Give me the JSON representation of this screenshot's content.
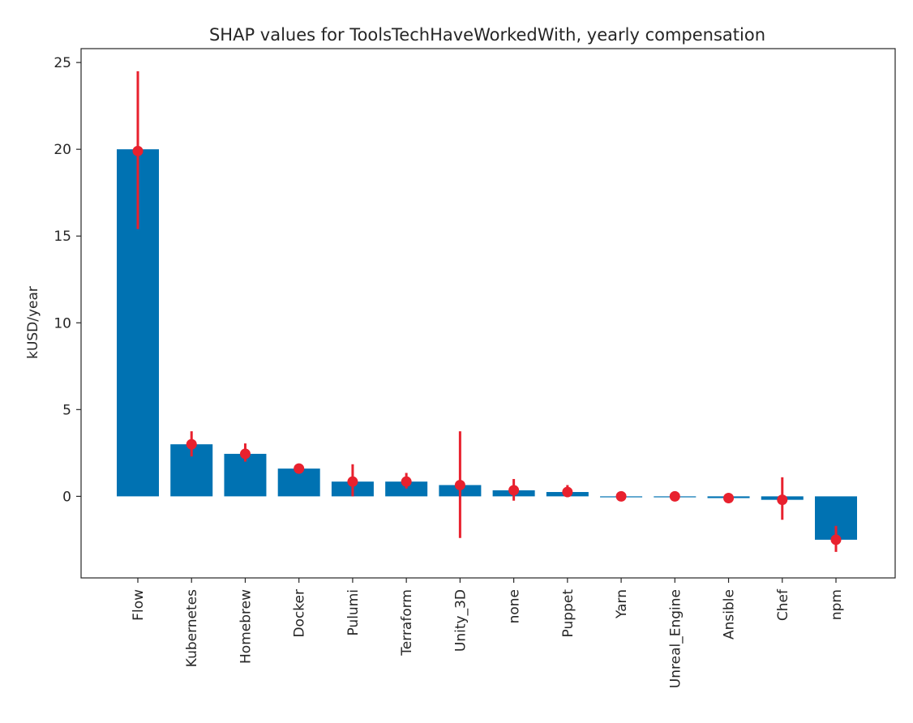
{
  "chart_data": {
    "type": "bar",
    "title": "SHAP values for ToolsTechHaveWorkedWith, yearly compensation",
    "xlabel": "",
    "ylabel": "kUSD/year",
    "categories": [
      "Flow",
      "Kubernetes",
      "Homebrew",
      "Docker",
      "Pulumi",
      "Terraform",
      "Unity_3D",
      "none",
      "Puppet",
      "Yarn",
      "Unreal_Engine",
      "Ansible",
      "Chef",
      "npm"
    ],
    "values": [
      20.0,
      3.0,
      2.45,
      1.6,
      0.85,
      0.85,
      0.65,
      0.35,
      0.25,
      0.0,
      0.0,
      -0.1,
      -0.2,
      -2.5
    ],
    "error_center": [
      19.9,
      3.0,
      2.45,
      1.6,
      0.85,
      0.85,
      0.65,
      0.35,
      0.25,
      0.0,
      0.0,
      -0.1,
      -0.2,
      -2.5
    ],
    "error_low": [
      15.4,
      2.3,
      2.0,
      1.35,
      0.0,
      0.45,
      -2.4,
      -0.25,
      -0.05,
      0.0,
      0.0,
      -0.3,
      -1.35,
      -3.2
    ],
    "error_high": [
      24.5,
      3.75,
      3.05,
      1.85,
      1.85,
      1.35,
      3.75,
      1.0,
      0.65,
      0.0,
      0.0,
      0.1,
      1.1,
      -1.7
    ],
    "ylim": [
      -4.7,
      25.8
    ],
    "yticks": [
      0,
      5,
      10,
      15,
      20,
      25
    ],
    "grid": false,
    "colors": {
      "bar": "#0072b2",
      "error": "#e8212e",
      "axis": "#262626"
    }
  }
}
